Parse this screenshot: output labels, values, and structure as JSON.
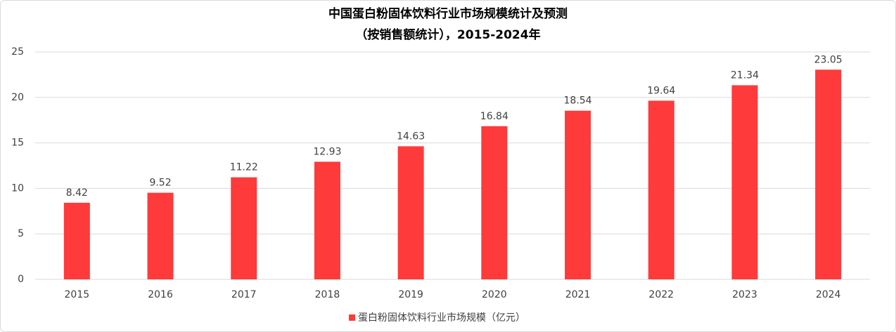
{
  "chart_data": {
    "type": "bar",
    "title": [
      "中国蛋白粉固体饮料行业市场规模统计及预测",
      "（按销售额统计），2015-2024年"
    ],
    "categories": [
      "2015",
      "2016",
      "2017",
      "2018",
      "2019",
      "2020",
      "2021",
      "2022",
      "2023",
      "2024"
    ],
    "series": [
      {
        "name": "蛋白粉固体饮料行业市场规模（亿元）",
        "color": "#fe3a3a",
        "values": [
          8.42,
          9.52,
          11.22,
          12.93,
          14.63,
          16.84,
          18.54,
          19.64,
          21.34,
          23.05
        ]
      }
    ],
    "ylim": [
      0,
      25
    ],
    "yticks": [
      0,
      5,
      10,
      15,
      20,
      25
    ],
    "grid": true,
    "legend": "bottom"
  }
}
